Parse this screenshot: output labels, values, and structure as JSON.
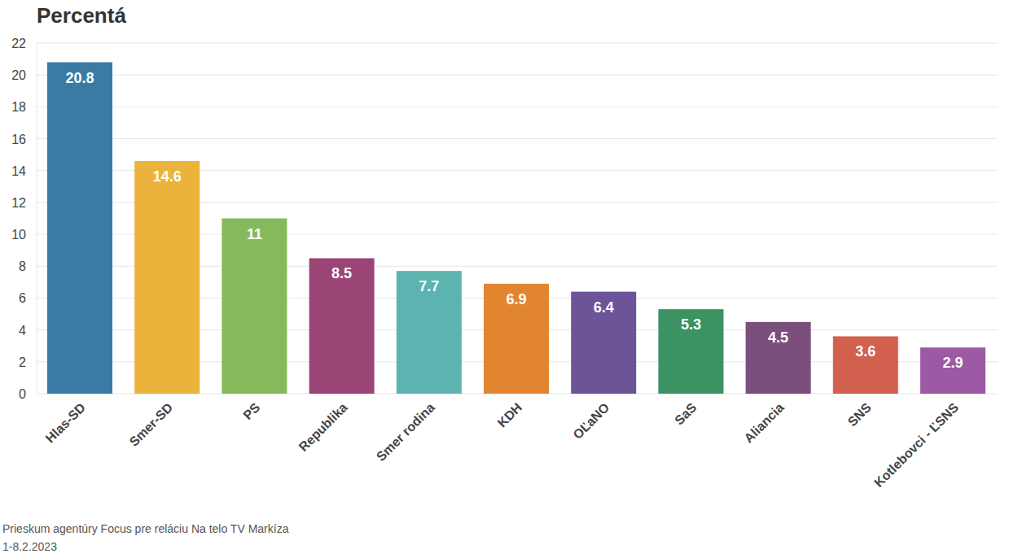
{
  "chart_data": {
    "type": "bar",
    "title": "Percentá",
    "categories": [
      "Hlas-SD",
      "Smer-SD",
      "PS",
      "Republika",
      "Smer rodina",
      "KDH",
      "OĽaNO",
      "SaS",
      "Aliancia",
      "SNS",
      "Kotlebovci - ĽSNS"
    ],
    "values": [
      20.8,
      14.6,
      11,
      8.5,
      7.7,
      6.9,
      6.4,
      5.3,
      4.5,
      3.6,
      2.9
    ],
    "colors": [
      "#3b7ba3",
      "#ecb33c",
      "#86b95c",
      "#9b4577",
      "#5cb3b0",
      "#e1862f",
      "#6d5499",
      "#3b9262",
      "#7b4f7b",
      "#d2604e",
      "#9b5aa3"
    ],
    "ylim": [
      0,
      22
    ],
    "yticks": [
      0,
      2,
      4,
      6,
      8,
      10,
      12,
      14,
      16,
      18,
      20,
      22
    ],
    "grid": true,
    "data_labels": true,
    "annotations": [
      "Prieskum agentúry Focus pre reláciu Na telo TV Markíza",
      "1-8.2.2023"
    ]
  }
}
